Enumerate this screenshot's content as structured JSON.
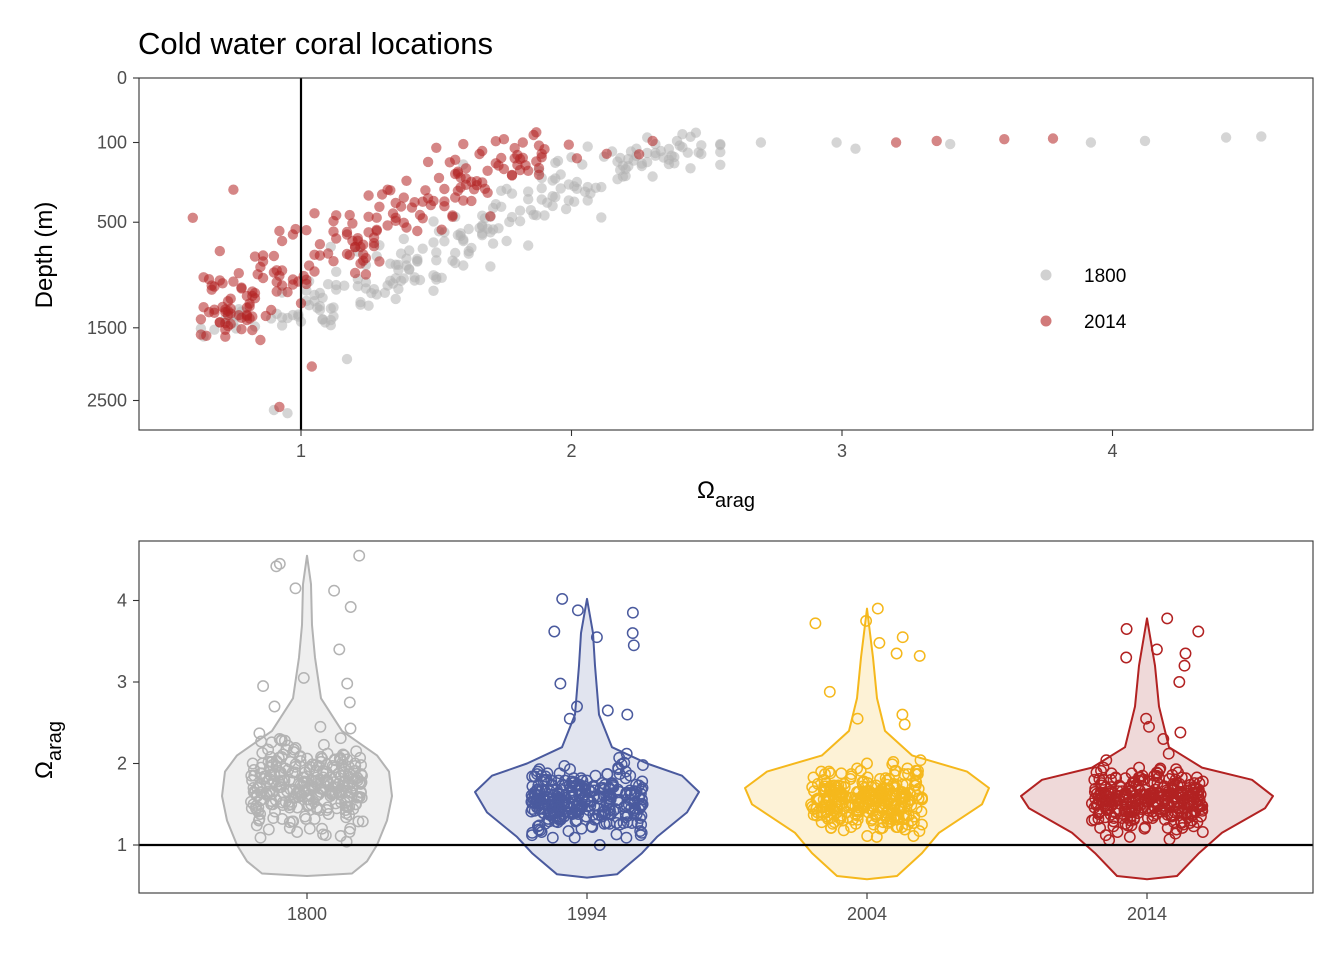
{
  "title": "Cold water coral locations",
  "colors": {
    "1800": "#b3b3b3",
    "1994": "#4a5a9e",
    "2004": "#f5b81c",
    "2014": "#b22222"
  },
  "chart_data": [
    {
      "type": "scatter",
      "title": "Cold water coral locations",
      "xlabel_symbol": "Ω",
      "xlabel_subscript": "arag",
      "ylabel": "Depth (m)",
      "xlim": [
        0.4,
        4.75
      ],
      "ylim_reversed": true,
      "y_scale": "sqrt",
      "x_ticks": [
        "1",
        "2",
        "3",
        "4"
      ],
      "y_ticks": [
        "0",
        "100",
        "500",
        "1500",
        "2500"
      ],
      "reference_line": {
        "axis": "x",
        "value": 1
      },
      "legend": {
        "position": "right",
        "entries": [
          "1800",
          "2014"
        ]
      },
      "grid": false,
      "series": [
        {
          "name": "1800",
          "color": "#b3b3b3",
          "points": []
        },
        {
          "name": "2014",
          "color": "#b22222",
          "points": []
        }
      ]
    },
    {
      "type": "violin",
      "ylabel_symbol": "Ω",
      "ylabel_subscript": "arag",
      "categories": [
        "1800",
        "1994",
        "2004",
        "2014"
      ],
      "y_ticks": [
        "1",
        "2",
        "3",
        "4"
      ],
      "ylim": [
        0.45,
        4.75
      ],
      "reference_line": {
        "axis": "y",
        "value": 1
      },
      "grid": false,
      "groups": [
        {
          "name": "1800",
          "color": "#b3b3b3",
          "fill": "#ececec",
          "min": 0.62,
          "max": 4.55,
          "points": []
        },
        {
          "name": "1994",
          "color": "#4a5a9e",
          "fill": "#dcdfec",
          "min": 0.6,
          "max": 4.02,
          "points": []
        },
        {
          "name": "2004",
          "color": "#f5b81c",
          "fill": "#fdf0cf",
          "min": 0.58,
          "max": 3.9,
          "points": []
        },
        {
          "name": "2014",
          "color": "#b22222",
          "fill": "#ecd2d2",
          "min": 0.58,
          "max": 3.78,
          "points": []
        }
      ]
    }
  ]
}
